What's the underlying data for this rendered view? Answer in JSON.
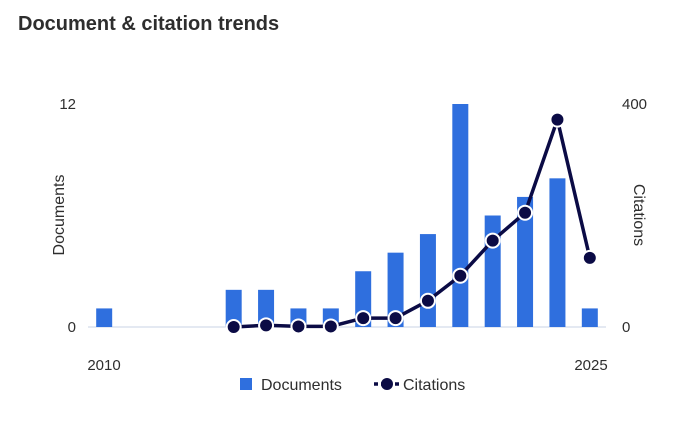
{
  "title": "Document & citation trends",
  "chart_data": {
    "type": "bar+line",
    "x": [
      2010,
      2011,
      2012,
      2013,
      2014,
      2015,
      2016,
      2017,
      2018,
      2019,
      2020,
      2021,
      2022,
      2023,
      2024,
      2025
    ],
    "x_tick_labels": [
      "2010",
      "2025"
    ],
    "series": [
      {
        "name": "Documents",
        "type": "bar",
        "axis": "left",
        "color": "#2f6fde",
        "values": [
          1,
          0,
          0,
          0,
          2,
          2,
          1,
          1,
          3,
          4,
          5,
          12,
          6,
          7,
          8,
          1
        ]
      },
      {
        "name": "Citations",
        "type": "line",
        "axis": "right",
        "color": "#0b0b45",
        "values": [
          null,
          null,
          null,
          null,
          0,
          3,
          1,
          1,
          16,
          16,
          47,
          92,
          155,
          205,
          372,
          124
        ]
      }
    ],
    "ylabel_left": "Documents",
    "ylabel_right": "Citations",
    "ylim_left": [
      0,
      12
    ],
    "ylim_right": [
      0,
      400
    ],
    "y_ticks_left": [
      "0",
      "12"
    ],
    "y_ticks_right": [
      "0",
      "400"
    ],
    "legend_position": "bottom",
    "grid": false
  }
}
